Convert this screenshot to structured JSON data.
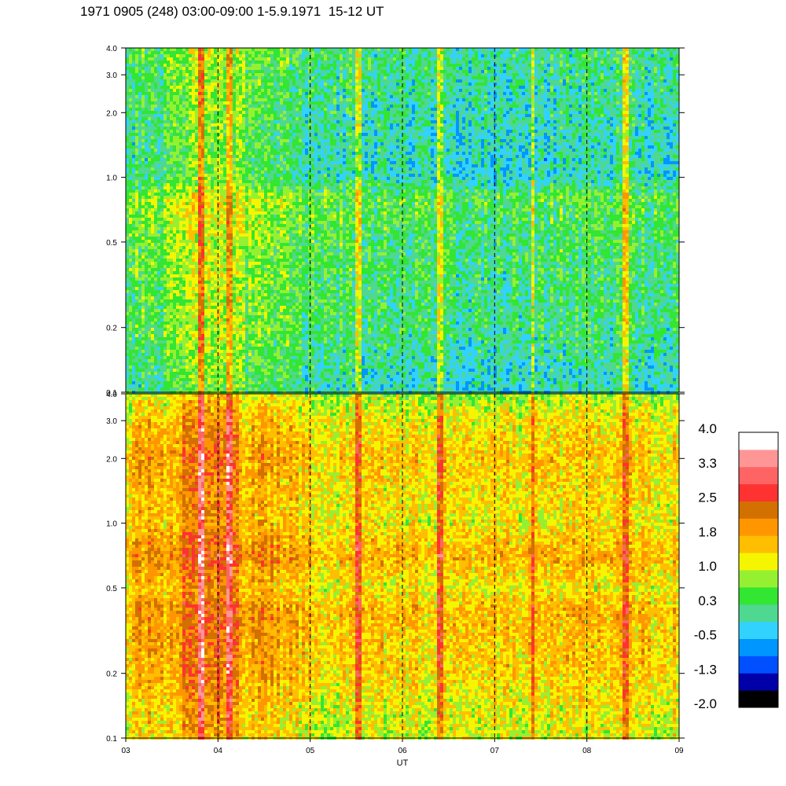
{
  "title": "1971 0905 (248) 03:00-09:00 1-5.9.1971  15-12 UT",
  "chart_data": [
    {
      "type": "heatmap",
      "panel": "top",
      "x_range": [
        3,
        9
      ],
      "x_ticks": [
        3,
        4,
        5,
        6,
        7,
        8,
        9
      ],
      "y_scale": "log",
      "y_range": [
        0.1,
        4.0
      ],
      "y_ticks": [
        0.1,
        0.2,
        0.5,
        1.0,
        2.0,
        3.0,
        4.0
      ],
      "y_tick_labels": [
        "0.1",
        "0.2",
        "0.5",
        "1.0",
        "2.0",
        "3.0",
        "4.0"
      ],
      "vertical_dashed_lines": [
        4,
        5,
        6,
        7,
        8
      ],
      "bright_streaks": [
        3.8,
        4.1,
        5.5,
        6.4,
        7.4,
        8.4
      ],
      "vmin": -2.0,
      "vmax": 4.0,
      "background_by_freq": [
        {
          "y": 0.1,
          "value": 0.0
        },
        {
          "y": 0.2,
          "value": 0.3
        },
        {
          "y": 0.5,
          "value": 0.4
        },
        {
          "y": 0.8,
          "value": 0.6
        },
        {
          "y": 1.0,
          "value": 0.0
        },
        {
          "y": 2.0,
          "value": 0.1
        },
        {
          "y": 4.0,
          "value": 0.3
        }
      ],
      "time_modulation": [
        {
          "x": 3.0,
          "value": 0.1
        },
        {
          "x": 3.5,
          "value": 0.2
        },
        {
          "x": 3.8,
          "value": 0.7
        },
        {
          "x": 4.0,
          "value": 0.8
        },
        {
          "x": 4.3,
          "value": 0.4
        },
        {
          "x": 5.0,
          "value": 0.0
        },
        {
          "x": 6.0,
          "value": -0.2
        },
        {
          "x": 7.0,
          "value": -0.2
        },
        {
          "x": 8.0,
          "value": -0.1
        },
        {
          "x": 9.0,
          "value": -0.1
        }
      ]
    },
    {
      "type": "heatmap",
      "panel": "bottom",
      "x_range": [
        3,
        9
      ],
      "x_ticks": [
        3,
        4,
        5,
        6,
        7,
        8,
        9
      ],
      "x_tick_labels": [
        "03",
        "04",
        "05",
        "06",
        "07",
        "08",
        "09"
      ],
      "xlabel": "UT",
      "y_scale": "log",
      "y_range": [
        0.1,
        4.0
      ],
      "y_ticks": [
        0.1,
        0.2,
        0.5,
        1.0,
        2.0,
        3.0,
        4.0
      ],
      "y_tick_labels": [
        "0.1",
        "0.2",
        "0.5",
        "1.0",
        "2.0",
        "3.0",
        "4.0"
      ],
      "vertical_dashed_lines": [
        4,
        5,
        6,
        7,
        8
      ],
      "bright_streaks": [
        3.8,
        4.1,
        5.5,
        6.4,
        7.4,
        8.4
      ],
      "vmin": -2.0,
      "vmax": 4.0,
      "background_by_freq": [
        {
          "y": 0.1,
          "value": 1.0
        },
        {
          "y": 0.2,
          "value": 1.4
        },
        {
          "y": 0.4,
          "value": 1.6
        },
        {
          "y": 0.5,
          "value": 1.2
        },
        {
          "y": 0.7,
          "value": 1.7
        },
        {
          "y": 1.0,
          "value": 1.2
        },
        {
          "y": 2.0,
          "value": 1.5
        },
        {
          "y": 3.0,
          "value": 1.2
        },
        {
          "y": 4.0,
          "value": 0.8
        }
      ],
      "time_modulation": [
        {
          "x": 3.0,
          "value": 0.0
        },
        {
          "x": 3.2,
          "value": 0.5
        },
        {
          "x": 3.4,
          "value": 0.1
        },
        {
          "x": 3.7,
          "value": 0.9
        },
        {
          "x": 4.0,
          "value": 1.0
        },
        {
          "x": 4.3,
          "value": 0.4
        },
        {
          "x": 4.8,
          "value": 0.3
        },
        {
          "x": 5.0,
          "value": 0.0
        },
        {
          "x": 6.0,
          "value": 0.0
        },
        {
          "x": 7.0,
          "value": 0.0
        },
        {
          "x": 8.0,
          "value": 0.0
        },
        {
          "x": 9.0,
          "value": 0.0
        }
      ]
    }
  ],
  "colorbar": {
    "labels": [
      "4.0",
      "3.3",
      "2.5",
      "1.8",
      "1.0",
      "0.3",
      "-0.5",
      "-1.3",
      "-2.0"
    ],
    "colors": [
      "#000000",
      "#0000a8",
      "#0050ff",
      "#0096ff",
      "#32d2ff",
      "#4ed890",
      "#32e632",
      "#96f032",
      "#f5f500",
      "#ffbe00",
      "#ff9600",
      "#d27000",
      "#ff3232",
      "#ff6464",
      "#ff9696",
      "#ffffff"
    ]
  }
}
